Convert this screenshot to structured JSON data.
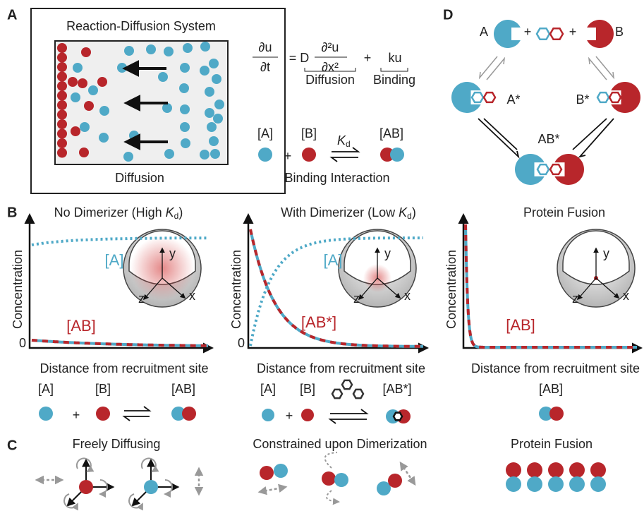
{
  "panel_a": {
    "letter": "A",
    "title": "Reaction-Diffusion System",
    "caption_diffusion": "Diffusion",
    "caption_binding": "Binding Interaction",
    "equation": {
      "du": "∂u",
      "dt": "∂t",
      "equals_d": "= D",
      "d2u": "∂²u",
      "dx2": "∂x²",
      "plus": "+",
      "ku": "ku",
      "diffusion_term": "Diffusion",
      "binding_term": "Binding"
    },
    "reaction": {
      "a": "[A]",
      "b": "[B]",
      "plus": "+",
      "k": "K",
      "k_sub": "d",
      "ab": "[AB]"
    }
  },
  "panel_d": {
    "letter": "D",
    "a": "A",
    "b": "B",
    "plus_1": "+",
    "plus_2": "+",
    "a_star": "A*",
    "b_star": "B*",
    "ab_star": "AB*"
  },
  "panel_b": {
    "letter": "B",
    "plots": [
      {
        "title": "No Dimerizer (High ",
        "title_k": "K",
        "title_sub": "d",
        "title_end": ")",
        "y_label": "Concentration",
        "zero": "0",
        "x_label": "Distance from recruitment site",
        "label_a": "[A]",
        "label_complex": "[AB]",
        "axes": [
          "y",
          "z",
          "x"
        ],
        "scheme": {
          "a": "[A]",
          "plus": "+",
          "b": "[B]",
          "complex": "[AB]"
        }
      },
      {
        "title": "With Dimerizer (Low ",
        "title_k": "K",
        "title_sub": "d",
        "title_end": ")",
        "y_label": "Concentration",
        "zero": "0",
        "x_label": "Distance from recruitment site",
        "label_a": "[A]",
        "label_complex": "[AB*]",
        "axes": [
          "y",
          "z",
          "x"
        ],
        "scheme": {
          "a": "[A]",
          "plus": "+",
          "b": "[B]",
          "complex": "[AB*]"
        }
      },
      {
        "title": "Protein Fusion",
        "y_label": "Concentration",
        "x_label": "Distance from recruitment site",
        "label_complex": "[AB]",
        "axes": [
          "y",
          "z",
          "x"
        ],
        "scheme": {
          "complex": "[AB]"
        }
      }
    ]
  },
  "panel_c": {
    "letter": "C",
    "titles": [
      "Freely Diffusing",
      "Constrained upon Dimerization",
      "Protein Fusion"
    ]
  }
}
